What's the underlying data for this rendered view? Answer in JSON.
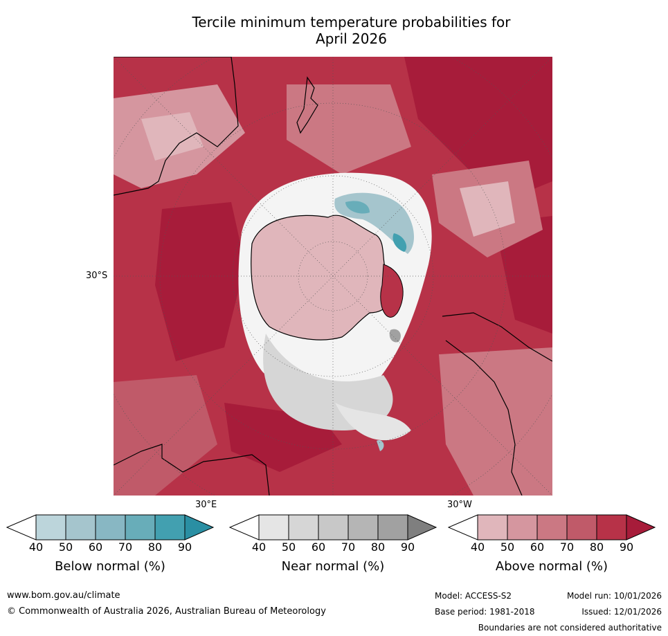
{
  "title_line1": "Tercile minimum temperature probabilities for",
  "title_line2": "April 2026",
  "labels": {
    "lat_30s": "30°S",
    "lon_30e": "30°E",
    "lon_30w": "30°W"
  },
  "colorbars": [
    {
      "label": "Below normal (%)",
      "ticks": [
        "40",
        "50",
        "60",
        "70",
        "80",
        "90"
      ],
      "colors": [
        "#ffffff",
        "#bcd5db",
        "#a5c5cd",
        "#88b7c3",
        "#68adb9",
        "#42a0b0",
        "#2a8fa3"
      ]
    },
    {
      "label": "Near normal (%)",
      "ticks": [
        "40",
        "50",
        "60",
        "70",
        "80",
        "90"
      ],
      "colors": [
        "#ffffff",
        "#e5e5e5",
        "#d6d6d6",
        "#c8c8c8",
        "#b5b5b5",
        "#a1a1a1",
        "#7f7f7f"
      ]
    },
    {
      "label": "Above normal (%)",
      "ticks": [
        "40",
        "50",
        "60",
        "70",
        "80",
        "90"
      ],
      "colors": [
        "#ffffff",
        "#e0b6bb",
        "#d5969f",
        "#cb7883",
        "#c05a69",
        "#b73248",
        "#a71c3a"
      ]
    }
  ],
  "footer": {
    "url": "www.bom.gov.au/climate",
    "copyright": "© Commonwealth of Australia 2026, Australian Bureau of Meteorology",
    "model": "Model: ACCESS-S2",
    "model_run": "Model run: 10/01/2026",
    "base_period": "Base period: 1981-2018",
    "issued": "Issued: 12/01/2026",
    "disclaimer": "Boundaries are not considered authoritative"
  }
}
